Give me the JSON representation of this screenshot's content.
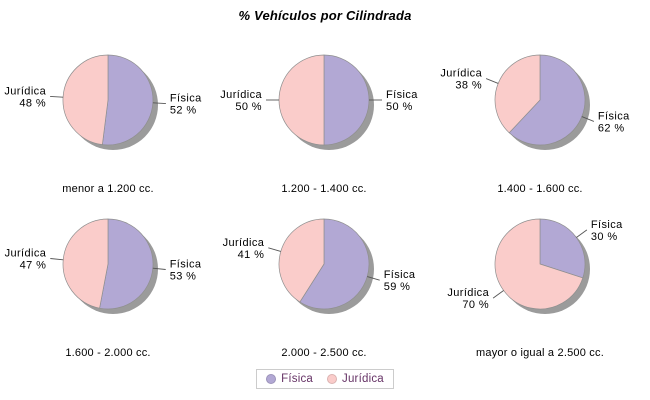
{
  "header": {
    "title": "% Vehículos por Cilindrada"
  },
  "legend": {
    "position": "bottom",
    "entries": [
      {
        "label": "Física",
        "color": "#B2A8D4"
      },
      {
        "label": "Jurídica",
        "color": "#FACCCA"
      }
    ]
  },
  "style": {
    "shadow_color": "#9B9B9B",
    "slice_border": "#8F8F8F",
    "callout_line_color": "#555555",
    "legend_text_color": "#663366",
    "legend_border_color": "#CCCCCC"
  },
  "chart_data": [
    {
      "type": "pie",
      "title": "menor a 1.200 cc.",
      "labels": [
        "Física",
        "Jurídica"
      ],
      "values": [
        52,
        48
      ],
      "unit": "%",
      "start_angle_deg": 0,
      "direction": "clockwise"
    },
    {
      "type": "pie",
      "title": "1.200 - 1.400 cc.",
      "labels": [
        "Física",
        "Jurídica"
      ],
      "values": [
        50,
        50
      ],
      "unit": "%",
      "start_angle_deg": 0,
      "direction": "clockwise"
    },
    {
      "type": "pie",
      "title": "1.400 - 1.600 cc.",
      "labels": [
        "Física",
        "Jurídica"
      ],
      "values": [
        62,
        38
      ],
      "unit": "%",
      "start_angle_deg": 0,
      "direction": "clockwise"
    },
    {
      "type": "pie",
      "title": "1.600 - 2.000 cc.",
      "labels": [
        "Física",
        "Jurídica"
      ],
      "values": [
        53,
        47
      ],
      "unit": "%",
      "start_angle_deg": 0,
      "direction": "clockwise"
    },
    {
      "type": "pie",
      "title": "2.000 - 2.500 cc.",
      "labels": [
        "Física",
        "Jurídica"
      ],
      "values": [
        59,
        41
      ],
      "unit": "%",
      "start_angle_deg": 0,
      "direction": "clockwise"
    },
    {
      "type": "pie",
      "title": "mayor o igual a 2.500 cc.",
      "labels": [
        "Física",
        "Jurídica"
      ],
      "values": [
        30,
        70
      ],
      "unit": "%",
      "start_angle_deg": 0,
      "direction": "clockwise"
    }
  ]
}
